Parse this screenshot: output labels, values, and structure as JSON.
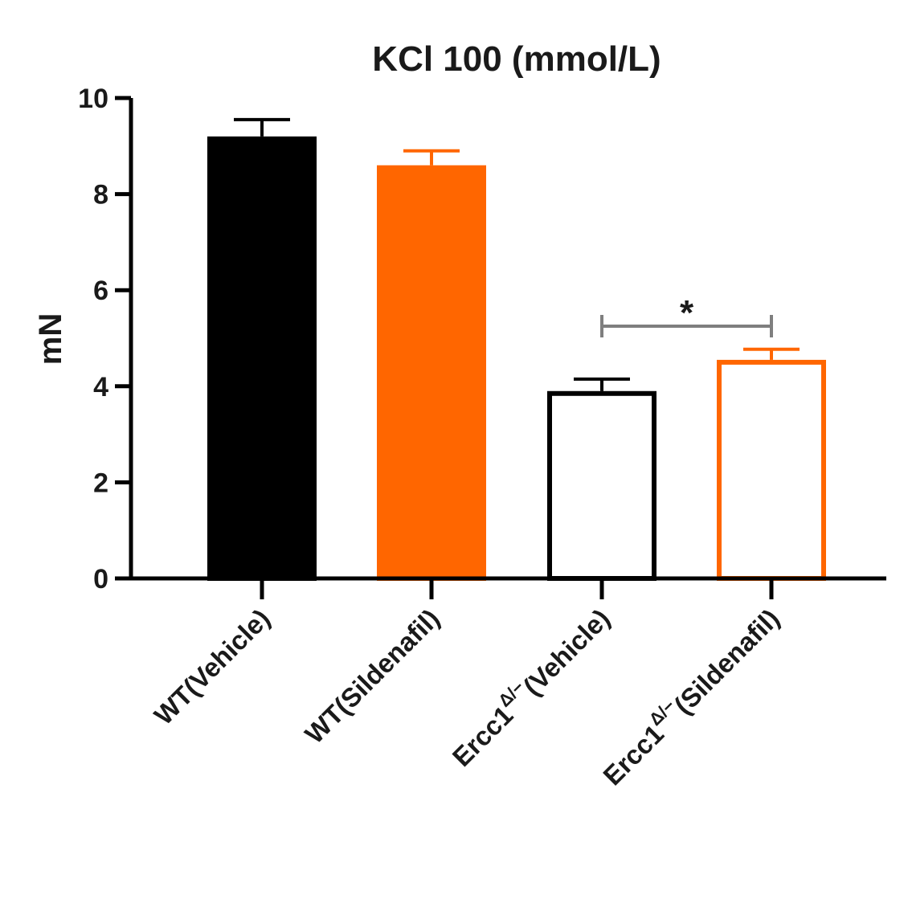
{
  "chart_data": {
    "type": "bar",
    "title": "KCl 100 (mmol/L)",
    "ylabel": "mN",
    "xlabel": "",
    "ylim": [
      0,
      10
    ],
    "yticks": [
      "0",
      "2",
      "4",
      "6",
      "8",
      "10"
    ],
    "categories": [
      {
        "prefix": "WT",
        "sup": "",
        "suffix": "(Vehicle)"
      },
      {
        "prefix": "WT",
        "sup": "",
        "suffix": "(Sildenafil)"
      },
      {
        "prefix": "Ercc1",
        "sup": "Δ/−",
        "suffix": "(Vehicle)"
      },
      {
        "prefix": "Ercc1",
        "sup": "Δ/−",
        "suffix": "(Sildenafil)"
      }
    ],
    "values": [
      9.2,
      8.6,
      3.9,
      4.55
    ],
    "errors": [
      0.35,
      0.3,
      0.25,
      0.22
    ],
    "styles": [
      {
        "fill": "#000000",
        "stroke": "#000000"
      },
      {
        "fill": "#ff6600",
        "stroke": "#ff6600"
      },
      {
        "fill": "#ffffff",
        "stroke": "#000000"
      },
      {
        "fill": "#ffffff",
        "stroke": "#ff6600"
      }
    ],
    "significance": {
      "from": 2,
      "to": 3,
      "label": "*",
      "color": "#7f7f7f"
    },
    "grid": false,
    "legend": "none"
  }
}
